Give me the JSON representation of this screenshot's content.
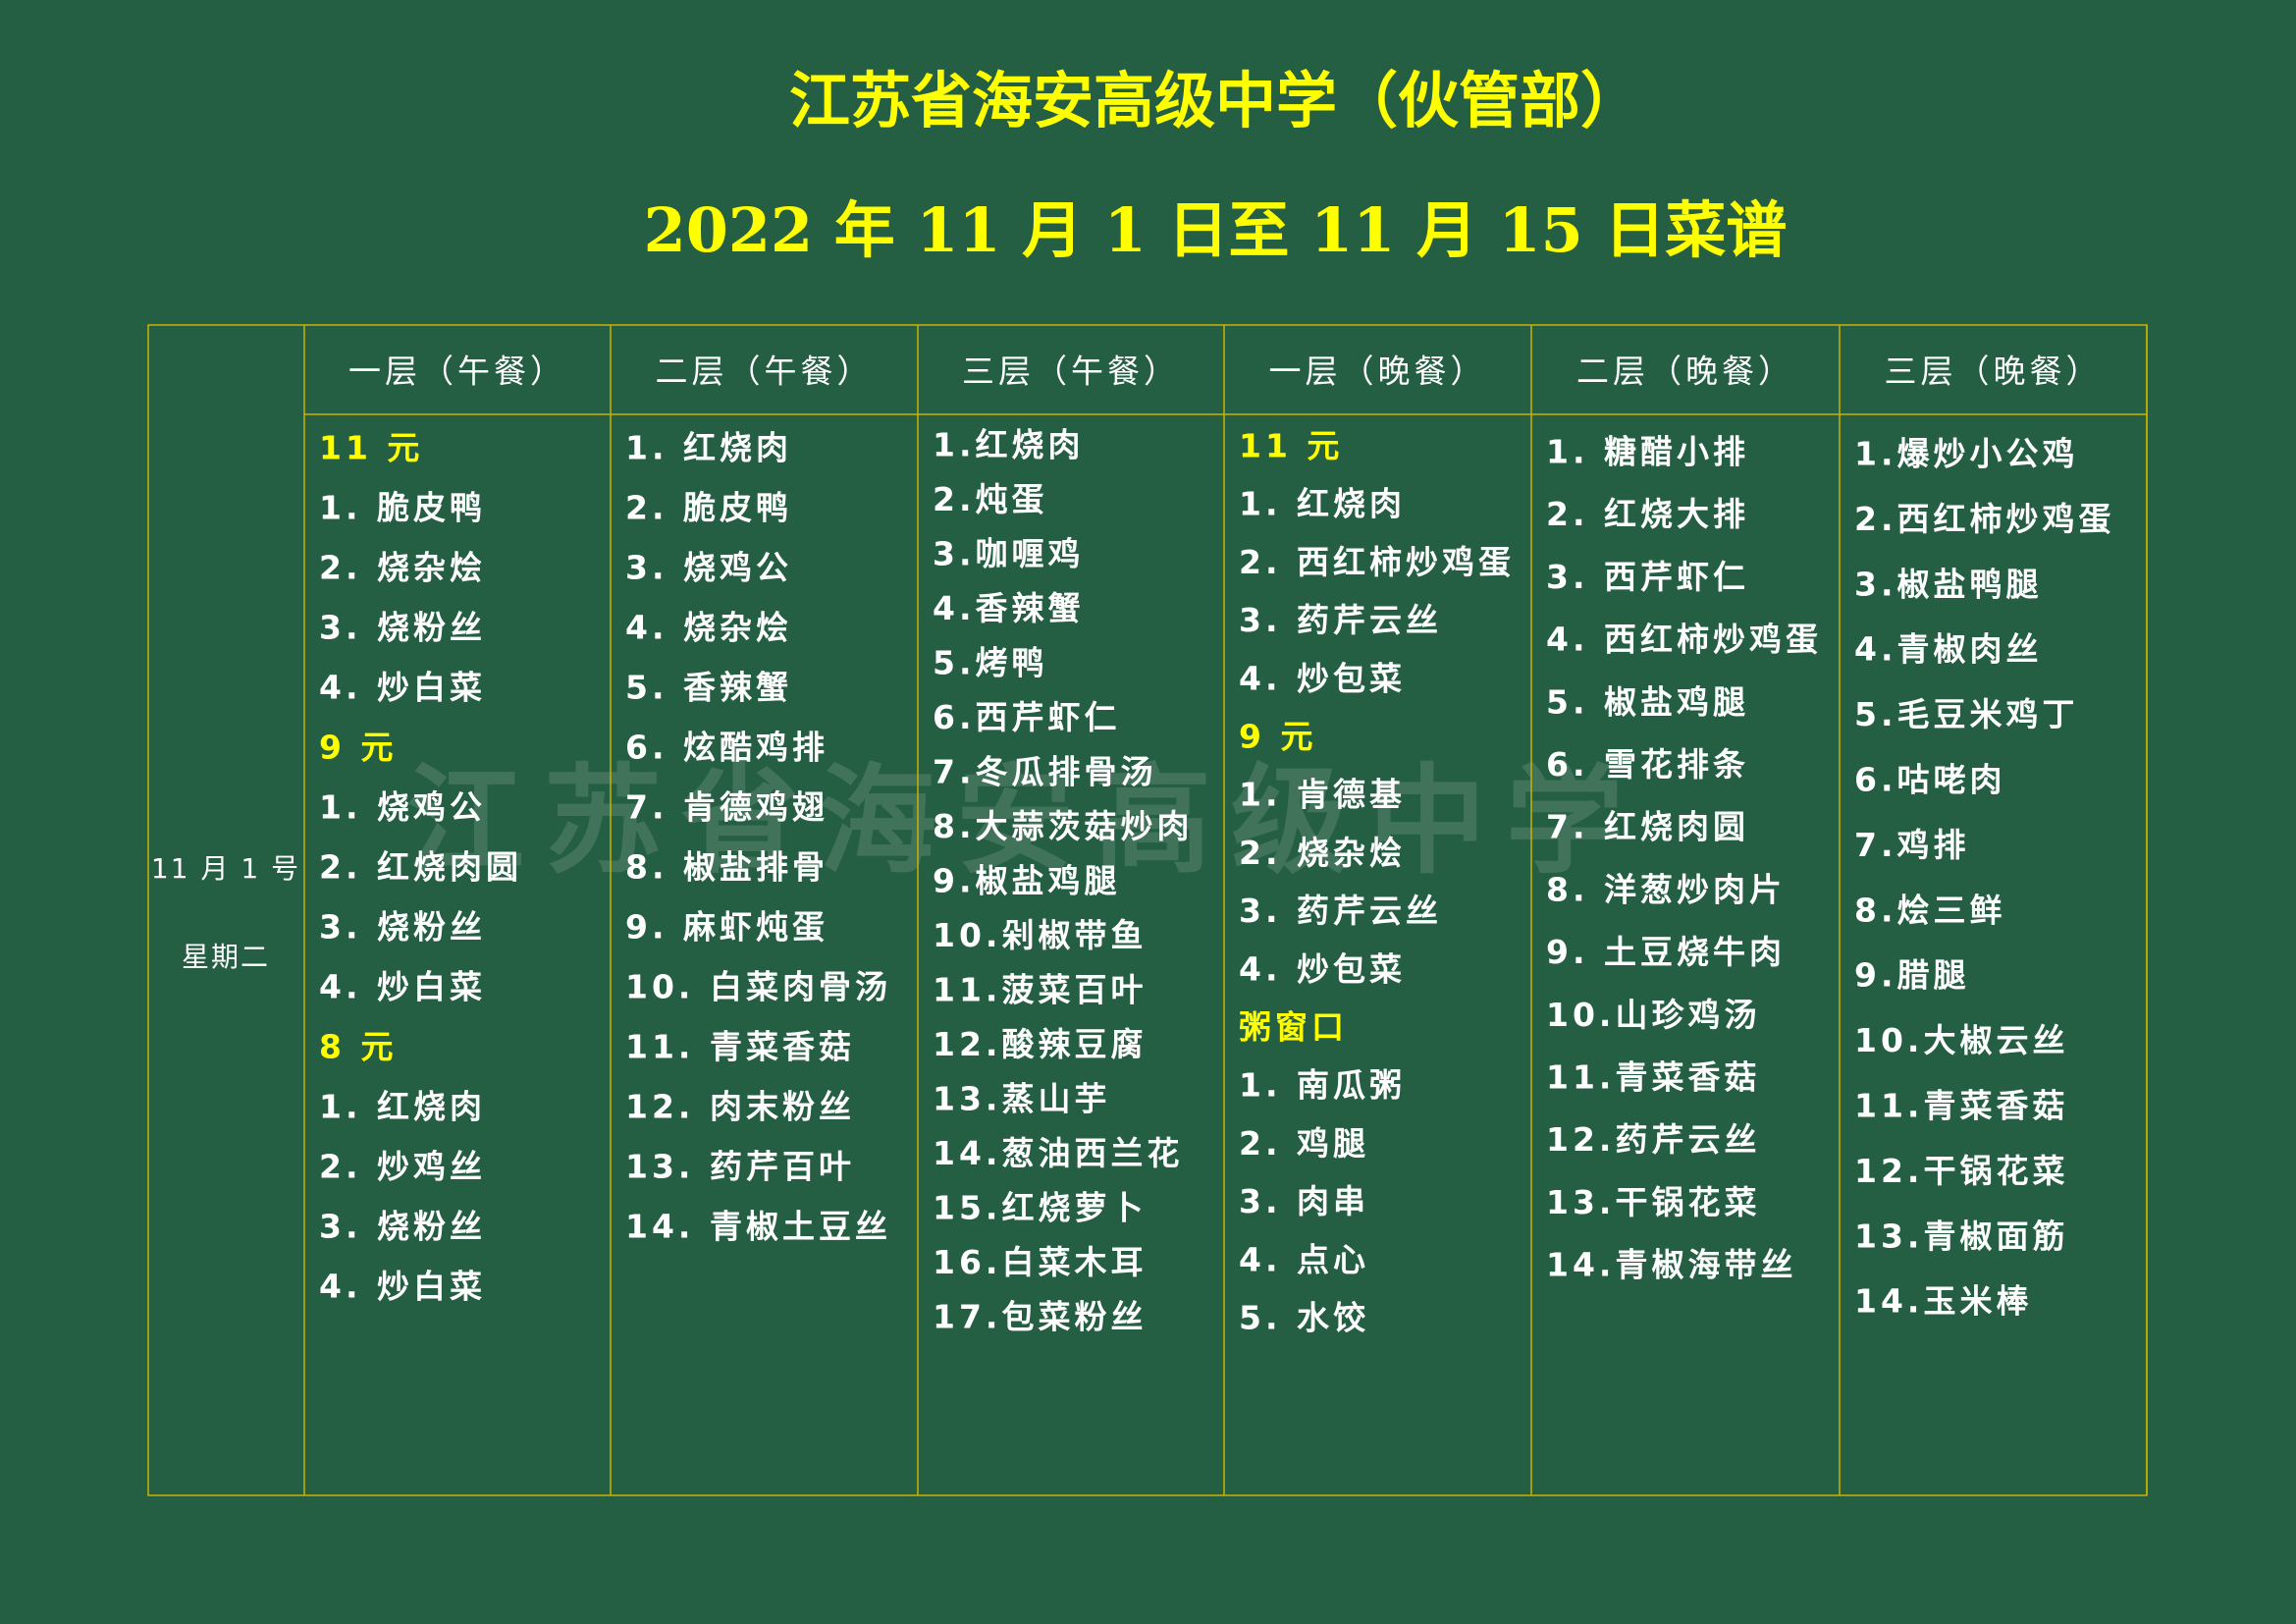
{
  "header": {
    "title": "江苏省海安高级中学（伙管部）",
    "subtitle": "2022 年 11 月 1 日至 11 月 15 日菜谱"
  },
  "watermark": "江苏省海安高级中学",
  "date_cell": {
    "date": "11 月 1 号",
    "weekday": "星期二"
  },
  "columns": [
    {
      "header": "一层（午餐）",
      "sections": [
        {
          "heading": "11 元",
          "items": [
            "1. 脆皮鸭",
            "2. 烧杂烩",
            "3. 烧粉丝",
            "4. 炒白菜"
          ]
        },
        {
          "heading": "9 元",
          "items": [
            "1. 烧鸡公",
            "2. 红烧肉圆",
            "3. 烧粉丝",
            "4. 炒白菜"
          ]
        },
        {
          "heading": "8 元",
          "items": [
            "1. 红烧肉",
            "2. 炒鸡丝",
            "3. 烧粉丝",
            "4. 炒白菜"
          ]
        }
      ]
    },
    {
      "header": "二层（午餐）",
      "sections": [
        {
          "items": [
            "1. 红烧肉",
            "2. 脆皮鸭",
            "3. 烧鸡公",
            "4. 烧杂烩",
            "5. 香辣蟹",
            "6. 炫酷鸡排",
            "7. 肯德鸡翅",
            "8. 椒盐排骨",
            "9. 麻虾炖蛋",
            "10. 白菜肉骨汤",
            "11. 青菜香菇",
            "12. 肉末粉丝",
            "13. 药芹百叶",
            "14. 青椒土豆丝"
          ]
        }
      ]
    },
    {
      "header": "三层（午餐）",
      "sections": [
        {
          "items": [
            "1.红烧肉",
            "2.炖蛋",
            "3.咖喱鸡",
            "4.香辣蟹",
            "5.烤鸭",
            "6.西芹虾仁",
            "7.冬瓜排骨汤",
            "8.大蒜茨菇炒肉",
            "9.椒盐鸡腿",
            "10.剁椒带鱼",
            "11.菠菜百叶",
            "12.酸辣豆腐",
            "13.蒸山芋",
            "14.葱油西兰花",
            "15.红烧萝卜",
            "16.白菜木耳",
            "17.包菜粉丝"
          ]
        }
      ]
    },
    {
      "header": "一层（晚餐）",
      "sections": [
        {
          "heading": "11 元",
          "items": [
            "1. 红烧肉",
            "2. 西红柿炒鸡蛋",
            "3. 药芹云丝",
            "4. 炒包菜"
          ]
        },
        {
          "heading": "9 元",
          "items": [
            "1. 肯德基",
            "2. 烧杂烩",
            "3. 药芹云丝",
            "4. 炒包菜"
          ]
        },
        {
          "heading": "粥窗口",
          "items": [
            "1. 南瓜粥",
            "2. 鸡腿",
            "3. 肉串",
            "4. 点心",
            "5. 水饺"
          ]
        }
      ]
    },
    {
      "header": "二层（晚餐）",
      "sections": [
        {
          "items": [
            "1. 糖醋小排",
            "2. 红烧大排",
            "3. 西芹虾仁",
            "4. 西红柿炒鸡蛋",
            "5. 椒盐鸡腿",
            "6. 雪花排条",
            "7. 红烧肉圆",
            "8. 洋葱炒肉片",
            "9. 土豆烧牛肉",
            "10.山珍鸡汤",
            "11.青菜香菇",
            "12.药芹云丝",
            "13.干锅花菜",
            "14.青椒海带丝"
          ]
        }
      ]
    },
    {
      "header": "三层（晚餐）",
      "sections": [
        {
          "items": [
            "1.爆炒小公鸡",
            "2.西红柿炒鸡蛋",
            "3.椒盐鸭腿",
            "4.青椒肉丝",
            "5.毛豆米鸡丁",
            "6.咕咾肉",
            "7.鸡排",
            "8.烩三鲜",
            "9.腊腿",
            "10.大椒云丝",
            "11.青菜香菇",
            "12.干锅花菜",
            "13.青椒面筋",
            "14.玉米棒"
          ]
        }
      ]
    }
  ]
}
